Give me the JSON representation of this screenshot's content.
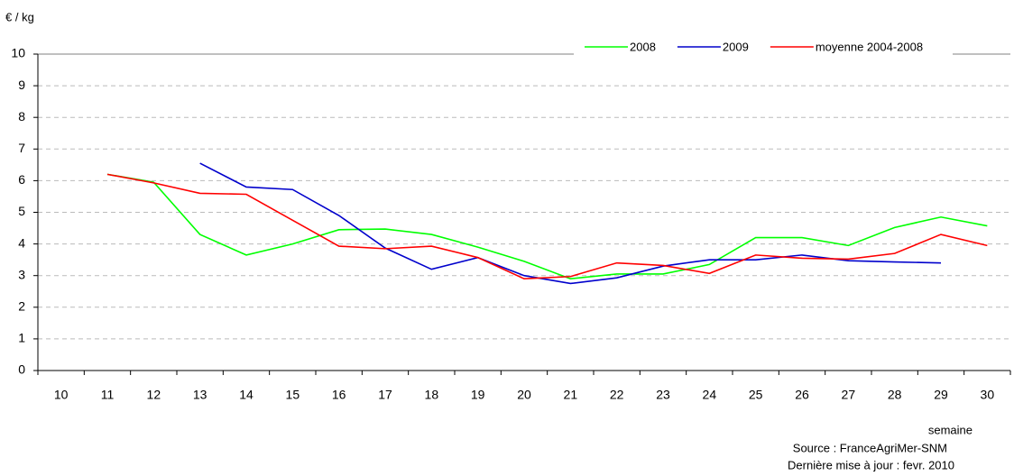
{
  "chart_data": {
    "type": "line",
    "y_label": "€ / kg",
    "x_label": "semaine",
    "source": "Source : FranceAgriMer-SNM",
    "update": "Dernière mise à jour : fevr. 2010",
    "categories": [
      "10",
      "11",
      "12",
      "13",
      "14",
      "15",
      "16",
      "17",
      "18",
      "19",
      "20",
      "21",
      "22",
      "23",
      "24",
      "25",
      "26",
      "27",
      "28",
      "29",
      "30"
    ],
    "series": [
      {
        "name": "2008",
        "color": "#00ff00",
        "values": [
          null,
          6.2,
          5.95,
          4.3,
          3.65,
          4.0,
          4.45,
          4.47,
          4.3,
          3.9,
          3.45,
          2.9,
          3.05,
          3.05,
          3.35,
          4.2,
          4.2,
          3.95,
          4.52,
          4.85,
          4.57
        ]
      },
      {
        "name": "2009",
        "color": "#0000cc",
        "values": [
          null,
          null,
          null,
          6.55,
          5.8,
          5.72,
          4.9,
          3.87,
          3.2,
          3.57,
          3.0,
          2.75,
          2.93,
          3.3,
          3.5,
          3.5,
          3.65,
          3.47,
          3.43,
          3.4,
          null
        ]
      },
      {
        "name": "moyenne 2004-2008",
        "color": "#ff0000",
        "values": [
          null,
          6.2,
          5.93,
          5.6,
          5.57,
          4.75,
          3.93,
          3.85,
          3.93,
          3.57,
          2.9,
          2.97,
          3.4,
          3.32,
          3.07,
          3.65,
          3.55,
          3.52,
          3.7,
          4.3,
          3.95
        ]
      }
    ],
    "ylim": [
      0,
      10
    ],
    "yticks": [
      0,
      1,
      2,
      3,
      4,
      5,
      6,
      7,
      8,
      9,
      10
    ],
    "grid": true,
    "legend": "top-right"
  }
}
